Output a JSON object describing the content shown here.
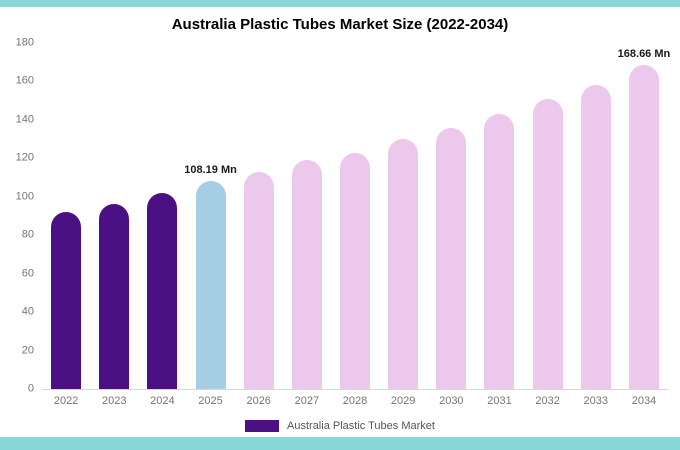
{
  "chart_data": {
    "type": "bar",
    "title": "Australia Plastic Tubes Market Size (2022-2034)",
    "categories": [
      "2022",
      "2023",
      "2024",
      "2025",
      "2026",
      "2027",
      "2028",
      "2029",
      "2030",
      "2031",
      "2032",
      "2033",
      "2034"
    ],
    "values": [
      92,
      96,
      102,
      108.19,
      113,
      119,
      123,
      130,
      136,
      143,
      151,
      158,
      168.66
    ],
    "unit": "Mn",
    "xlabel": "",
    "ylabel": "",
    "ylim": [
      0,
      180
    ],
    "ytick_step": 20,
    "grid": false,
    "bar_colors": [
      "#4b1083",
      "#4b1083",
      "#4b1083",
      "#a5cde3",
      "#ecc8ec",
      "#ecc8ec",
      "#ecc8ec",
      "#ecc8ec",
      "#ecc8ec",
      "#ecc8ec",
      "#ecc8ec",
      "#ecc8ec",
      "#ecc8ec"
    ],
    "point_labels": {
      "2025": "108.19 Mn",
      "2034": "168.66 Mn"
    },
    "legend": {
      "label": "Australia Plastic Tubes Market",
      "color": "#4b1083",
      "position": "bottom"
    },
    "colors": {
      "historical_bar": "#4b1083",
      "highlight_bar": "#a5cde3",
      "forecast_bar": "#ecc8ec",
      "page_border": "#86d8d8",
      "axis_text": "#757575"
    }
  }
}
